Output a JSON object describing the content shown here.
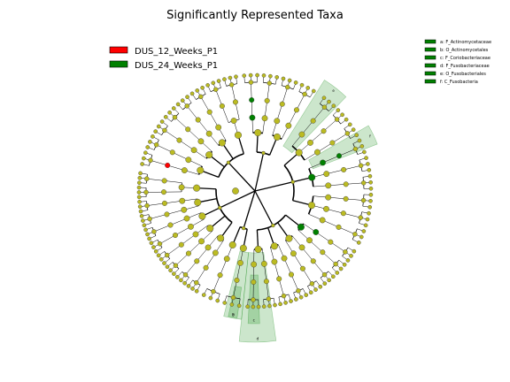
{
  "chart_data": {
    "type": "cladogram",
    "title": "Significantly Represented Taxa",
    "classes": [
      {
        "name": "DUS_12_Weeks_P1",
        "color": "#ff0000"
      },
      {
        "name": "DUS_24_Weeks_P1",
        "color": "#008000"
      }
    ],
    "node_color": "#bbbb22",
    "highlight_color": "#008000",
    "clade_labels": [
      {
        "letter": "a",
        "taxon": "a: F_Actinomycetaceae"
      },
      {
        "letter": "b",
        "taxon": "b: O_Actinomycetales"
      },
      {
        "letter": "c",
        "taxon": "c: F_Coriobacteriaceae"
      },
      {
        "letter": "d",
        "taxon": "d: F_Fusobacteriaceae"
      },
      {
        "letter": "e",
        "taxon": "e: O_Fusobacteriales"
      },
      {
        "letter": "f",
        "taxon": "f: C_Fusobacteria"
      }
    ]
  }
}
